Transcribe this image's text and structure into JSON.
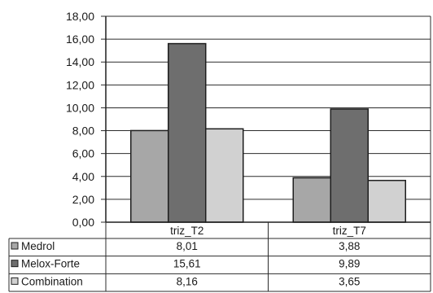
{
  "chart_data": {
    "type": "bar",
    "categories": [
      "triz_T2",
      "triz_T7"
    ],
    "series": [
      {
        "name": "Medrol",
        "values": [
          8.01,
          3.88
        ],
        "labels": [
          "8,01",
          "3,88"
        ],
        "color": "#a7a7a7"
      },
      {
        "name": "Melox-Forte",
        "values": [
          15.61,
          9.89
        ],
        "labels": [
          "15,61",
          "9,89"
        ],
        "color": "#6e6e6e"
      },
      {
        "name": "Combination",
        "values": [
          8.16,
          3.65
        ],
        "labels": [
          "8,16",
          "3,65"
        ],
        "color": "#d1d1d1"
      }
    ],
    "ylim": [
      0,
      18
    ],
    "yticks": [
      "0,00",
      "2,00",
      "4,00",
      "6,00",
      "8,00",
      "10,00",
      "12,00",
      "14,00",
      "16,00",
      "18,00"
    ],
    "grid": true,
    "legend": "data-table",
    "title": "",
    "xlabel": "",
    "ylabel": ""
  }
}
